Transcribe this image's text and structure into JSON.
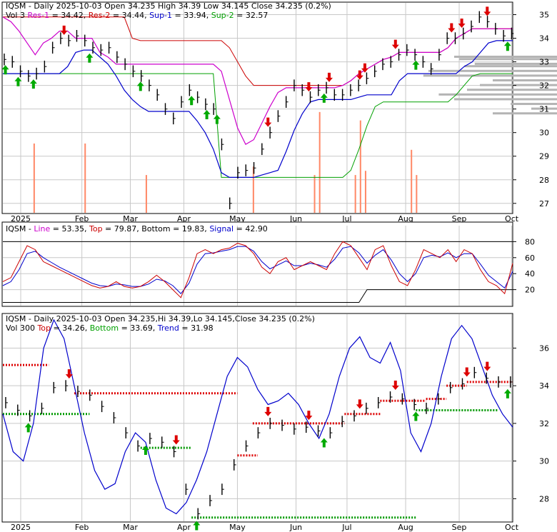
{
  "colors": {
    "res": "#cc0000",
    "sup": "#00a000",
    "line": "#cc00cc",
    "bb": "#0000cc",
    "signal": "#0000cc",
    "volume": "#ff8866",
    "up": "#00aa00",
    "down": "#dd0000",
    "grid": "#c8c8c8",
    "ohlc": "#000000",
    "dots_red": "#dd0000",
    "dots_green": "#009900"
  },
  "chart_data": [
    {
      "type": "line",
      "title_parts": [
        {
          "text": "IQSM - Daily 2025-10-03 Open 34.235  High 34.39  Low 34.145  Close 34.235 (0.2%)",
          "color": "#000000"
        }
      ],
      "legend_parts": [
        {
          "text": "Vol 3 ",
          "color": "#000000"
        },
        {
          "text": "Res-1",
          "color": "#cc00cc"
        },
        {
          "text": " = 34.42, ",
          "color": "#000000"
        },
        {
          "text": "Res-2",
          "color": "#cc0000"
        },
        {
          "text": " = 34.44, ",
          "color": "#000000"
        },
        {
          "text": "Sup-1",
          "color": "#0000cc"
        },
        {
          "text": " = 33.94, ",
          "color": "#000000"
        },
        {
          "text": "Sup-2",
          "color": "#00a000"
        },
        {
          "text": " = 32.57",
          "color": "#000000"
        }
      ],
      "x_months": [
        "2025",
        "Feb",
        "Mar",
        "Apr",
        "May",
        "Jun",
        "Jul",
        "Aug",
        "Sep",
        "Oct"
      ],
      "y_ticks": [
        27,
        28,
        29,
        30,
        31,
        32,
        33,
        34,
        35
      ],
      "ylim": [
        26.6,
        35.5
      ],
      "price": [
        33.1,
        33.0,
        32.6,
        32.4,
        32.5,
        32.8,
        33.6,
        34.0,
        33.9,
        34.1,
        33.9,
        33.6,
        33.5,
        33.6,
        33.2,
        32.9,
        32.6,
        32.4,
        32.0,
        31.6,
        31.0,
        30.6,
        31.3,
        31.8,
        31.5,
        31.2,
        31.0,
        29.5,
        27.0,
        28.3,
        28.4,
        28.5,
        29.3,
        30.0,
        30.7,
        31.3,
        32.0,
        31.8,
        31.5,
        31.8,
        31.9,
        31.6,
        31.6,
        31.8,
        32.0,
        32.3,
        32.6,
        32.9,
        33.0,
        33.3,
        33.5,
        33.3,
        33.0,
        32.7,
        33.3,
        34.0,
        34.0,
        34.2,
        34.5,
        34.9,
        34.7,
        34.4,
        34.1,
        34.2
      ],
      "res1": [
        34.9,
        34.7,
        34.3,
        33.8,
        33.3,
        33.8,
        34.0,
        34.3,
        34.3,
        34.0,
        34.0,
        34.0,
        33.4,
        33.2,
        32.9,
        32.9,
        32.9,
        32.9,
        32.9,
        32.9,
        32.9,
        32.9,
        32.9,
        32.9,
        32.9,
        32.9,
        32.9,
        32.6,
        31.4,
        30.2,
        29.5,
        29.7,
        30.4,
        31.1,
        31.7,
        31.9,
        31.9,
        31.9,
        31.9,
        31.9,
        31.9,
        31.9,
        32.0,
        32.2,
        32.5,
        32.7,
        32.9,
        33.1,
        33.2,
        33.4,
        33.4,
        33.4,
        33.4,
        33.4,
        33.4,
        33.6,
        34.0,
        34.2,
        34.4,
        34.4,
        34.4,
        34.4,
        34.4,
        34.4
      ],
      "res2": [
        34.9,
        34.9,
        34.9,
        34.9,
        34.9,
        34.9,
        34.9,
        34.9,
        34.9,
        34.9,
        34.9,
        34.9,
        34.9,
        34.9,
        34.9,
        34.9,
        34.0,
        33.9,
        33.9,
        33.9,
        33.9,
        33.9,
        33.9,
        33.9,
        33.9,
        33.9,
        33.9,
        33.9,
        33.6,
        33.0,
        32.4,
        32.0,
        32.0,
        32.0,
        32.0,
        32.0,
        32.0,
        32.0,
        32.0,
        32.0,
        32.0,
        32.0,
        32.0,
        32.2,
        32.5,
        32.7,
        32.9,
        33.1,
        33.2,
        33.4,
        33.4,
        33.4,
        33.4,
        33.4,
        33.4,
        33.6,
        34.0,
        34.2,
        34.4,
        34.4,
        34.4,
        34.4,
        34.4,
        34.4
      ],
      "sup1": [
        32.5,
        32.5,
        32.5,
        32.5,
        32.5,
        32.5,
        32.5,
        32.5,
        32.8,
        33.4,
        33.5,
        33.5,
        33.2,
        32.9,
        32.4,
        31.8,
        31.4,
        31.1,
        30.9,
        30.9,
        30.9,
        30.9,
        30.9,
        30.9,
        30.5,
        30.0,
        29.3,
        28.3,
        28.1,
        28.1,
        28.1,
        28.1,
        28.2,
        28.3,
        28.4,
        29.2,
        30.1,
        30.8,
        31.3,
        31.4,
        31.4,
        31.4,
        31.4,
        31.4,
        31.5,
        31.6,
        31.6,
        31.6,
        31.6,
        32.2,
        32.5,
        32.5,
        32.5,
        32.5,
        32.5,
        32.5,
        32.5,
        32.8,
        33.0,
        33.4,
        33.8,
        33.9,
        33.9,
        33.9
      ],
      "sup2": [
        32.5,
        32.5,
        32.5,
        32.5,
        32.5,
        32.5,
        32.5,
        32.5,
        32.5,
        32.5,
        32.5,
        32.5,
        32.5,
        32.5,
        32.5,
        32.5,
        32.5,
        32.5,
        32.5,
        32.5,
        32.5,
        32.5,
        32.5,
        32.5,
        32.5,
        32.5,
        32.5,
        28.1,
        28.1,
        28.1,
        28.1,
        28.1,
        28.1,
        28.1,
        28.1,
        28.1,
        28.1,
        28.1,
        28.1,
        28.1,
        28.1,
        28.1,
        28.1,
        28.4,
        29.3,
        30.3,
        31.1,
        31.3,
        31.3,
        31.3,
        31.3,
        31.3,
        31.3,
        31.3,
        31.3,
        31.3,
        31.6,
        32.0,
        32.4,
        32.5,
        32.5,
        32.5,
        32.5,
        32.5
      ],
      "volume_spikes": [
        [
          0.06,
          0.33
        ],
        [
          0.16,
          0.33
        ],
        [
          0.28,
          0.18
        ],
        [
          0.49,
          0.22
        ],
        [
          0.61,
          0.18
        ],
        [
          0.62,
          0.48
        ],
        [
          0.69,
          0.18
        ],
        [
          0.7,
          0.44
        ],
        [
          0.71,
          0.2
        ],
        [
          0.8,
          0.3
        ],
        [
          0.81,
          0.18
        ]
      ],
      "up_arrows": [
        0.005,
        0.03,
        0.06,
        0.17,
        0.27,
        0.37,
        0.4,
        0.42,
        0.63,
        0.81,
        0.99
      ],
      "down_arrows": [
        0.12,
        0.52,
        0.6,
        0.64,
        0.7,
        0.71,
        0.77,
        0.88,
        0.9,
        0.95
      ],
      "vol_profile": [
        [
          33.2,
          0.4
        ],
        [
          33.1,
          0.38
        ],
        [
          32.9,
          0.32
        ],
        [
          32.8,
          0.36
        ],
        [
          32.6,
          0.5
        ],
        [
          32.4,
          0.52
        ],
        [
          32.2,
          0.25
        ],
        [
          32.0,
          0.3
        ],
        [
          31.8,
          0.35
        ],
        [
          31.6,
          0.46
        ],
        [
          31.4,
          0.4
        ],
        [
          31.2,
          0.18
        ],
        [
          31.0,
          0.1
        ],
        [
          30.8,
          0.25
        ]
      ]
    },
    {
      "type": "line",
      "title_parts": [
        {
          "text": "IQSM - ",
          "color": "#000000"
        },
        {
          "text": "Line",
          "color": "#cc00cc"
        },
        {
          "text": " = 53.35, ",
          "color": "#000000"
        },
        {
          "text": "Top",
          "color": "#cc0000"
        },
        {
          "text": " = 79.87, ",
          "color": "#000000"
        },
        {
          "text": "Bottom",
          "color": "#000000"
        },
        {
          "text": " = 19.83, ",
          "color": "#000000"
        },
        {
          "text": "Signal",
          "color": "#0000cc"
        },
        {
          "text": " = 42.90",
          "color": "#000000"
        }
      ],
      "y_ticks": [
        20,
        40,
        60,
        80
      ],
      "ylim": [
        0,
        100
      ],
      "line": [
        30,
        35,
        55,
        75,
        70,
        55,
        50,
        45,
        40,
        35,
        30,
        25,
        22,
        24,
        30,
        24,
        22,
        24,
        30,
        38,
        30,
        20,
        10,
        35,
        65,
        70,
        65,
        70,
        72,
        78,
        75,
        65,
        48,
        40,
        55,
        60,
        45,
        50,
        55,
        50,
        45,
        65,
        80,
        75,
        60,
        45,
        70,
        75,
        50,
        30,
        25,
        45,
        70,
        65,
        60,
        70,
        55,
        70,
        65,
        45,
        30,
        25,
        15,
        53
      ],
      "signal": [
        25,
        30,
        45,
        65,
        68,
        60,
        54,
        48,
        43,
        38,
        33,
        28,
        25,
        24,
        27,
        26,
        24,
        24,
        27,
        33,
        31,
        25,
        15,
        28,
        52,
        65,
        66,
        68,
        70,
        74,
        74,
        68,
        55,
        46,
        51,
        56,
        50,
        50,
        53,
        51,
        48,
        58,
        72,
        74,
        66,
        53,
        63,
        70,
        57,
        40,
        30,
        40,
        60,
        63,
        61,
        66,
        60,
        65,
        65,
        52,
        38,
        30,
        22,
        43
      ],
      "top": [
        80,
        80,
        80,
        80,
        80,
        80,
        80,
        80,
        80,
        80,
        80,
        80,
        80,
        80,
        80,
        80,
        80,
        80,
        80,
        80,
        80,
        80,
        80,
        80,
        80,
        80,
        80,
        80,
        80,
        80,
        80,
        80,
        80,
        80,
        80,
        80,
        80,
        80,
        80,
        80,
        80,
        80,
        80,
        80,
        80,
        80,
        80,
        80,
        80,
        80,
        80,
        80,
        80,
        80,
        80,
        80,
        80,
        80,
        80,
        80,
        80,
        80,
        80,
        80
      ],
      "bottom": [
        4,
        4,
        4,
        4,
        4,
        4,
        4,
        4,
        4,
        4,
        4,
        4,
        4,
        4,
        4,
        4,
        4,
        4,
        4,
        4,
        4,
        4,
        4,
        4,
        4,
        4,
        4,
        4,
        4,
        4,
        4,
        4,
        4,
        4,
        4,
        4,
        4,
        4,
        4,
        4,
        4,
        4,
        4,
        4,
        4,
        20,
        20,
        20,
        20,
        20,
        20,
        20,
        20,
        20,
        20,
        20,
        20,
        20,
        20,
        20,
        20,
        20,
        20,
        20
      ]
    },
    {
      "type": "line",
      "title_parts": [
        {
          "text": "IQSM - Daily 2025-10-03 Open 34.235,Hi 34.39,Lo 34.145,Close 34.235 (0.2%)",
          "color": "#000000"
        }
      ],
      "legend_parts": [
        {
          "text": "Vol 300 ",
          "color": "#000000"
        },
        {
          "text": "Top",
          "color": "#cc0000"
        },
        {
          "text": " = 34.26, ",
          "color": "#000000"
        },
        {
          "text": "Bottom",
          "color": "#00a000"
        },
        {
          "text": " = 33.69, ",
          "color": "#000000"
        },
        {
          "text": "Trend",
          "color": "#0000cc"
        },
        {
          "text": " = 31.98",
          "color": "#000000"
        }
      ],
      "y_ticks": [
        28,
        30,
        32,
        34,
        36
      ],
      "ylim": [
        26.8,
        37.8
      ],
      "x_months": [
        "2025",
        "Feb",
        "Mar",
        "Apr",
        "May",
        "Jun",
        "Jul",
        "Aug",
        "Sep",
        "Oct"
      ],
      "trend": [
        32.5,
        30.5,
        30.0,
        32.0,
        36.0,
        37.5,
        36.5,
        34.0,
        31.5,
        29.5,
        28.5,
        28.8,
        30.5,
        31.5,
        31.0,
        29.0,
        27.5,
        27.2,
        27.8,
        29.0,
        30.5,
        32.5,
        34.5,
        35.5,
        35.0,
        33.8,
        33.0,
        33.2,
        33.6,
        33.0,
        32.0,
        31.2,
        32.5,
        34.5,
        36.0,
        36.6,
        35.5,
        35.2,
        36.3,
        34.8,
        31.5,
        30.5,
        32.0,
        34.5,
        36.5,
        37.2,
        36.5,
        35.0,
        33.5,
        32.5,
        31.8
      ],
      "price": [
        33.1,
        32.7,
        32.4,
        32.8,
        33.9,
        34.0,
        33.7,
        33.5,
        32.9,
        32.3,
        31.5,
        30.8,
        31.2,
        31.0,
        30.5,
        28.5,
        27.2,
        27.9,
        28.5,
        29.8,
        30.8,
        31.5,
        32.0,
        31.9,
        31.7,
        31.8,
        31.6,
        31.5,
        32.1,
        32.4,
        32.8,
        33.1,
        33.4,
        33.3,
        33.0,
        32.8,
        33.3,
        33.9,
        34.1,
        34.7,
        34.4,
        34.2,
        34.2
      ],
      "tops": [
        [
          0.0,
          0.09,
          35.1
        ],
        [
          0.14,
          0.46,
          33.6
        ],
        [
          0.46,
          0.5,
          30.3
        ],
        [
          0.49,
          0.67,
          32.0
        ],
        [
          0.67,
          0.74,
          32.5
        ],
        [
          0.74,
          0.83,
          33.2
        ],
        [
          0.83,
          0.87,
          33.3
        ],
        [
          0.87,
          0.91,
          34.0
        ],
        [
          0.91,
          1.0,
          34.2
        ]
      ],
      "bottoms": [
        [
          0.0,
          0.17,
          32.5
        ],
        [
          0.27,
          0.37,
          30.7
        ],
        [
          0.37,
          0.81,
          27.0
        ],
        [
          0.81,
          0.97,
          32.7
        ]
      ],
      "up_arrows": [
        0.05,
        0.28,
        0.38,
        0.63,
        0.81,
        0.99
      ],
      "down_arrows": [
        0.13,
        0.34,
        0.52,
        0.6,
        0.7,
        0.77,
        0.91,
        0.95
      ]
    }
  ]
}
